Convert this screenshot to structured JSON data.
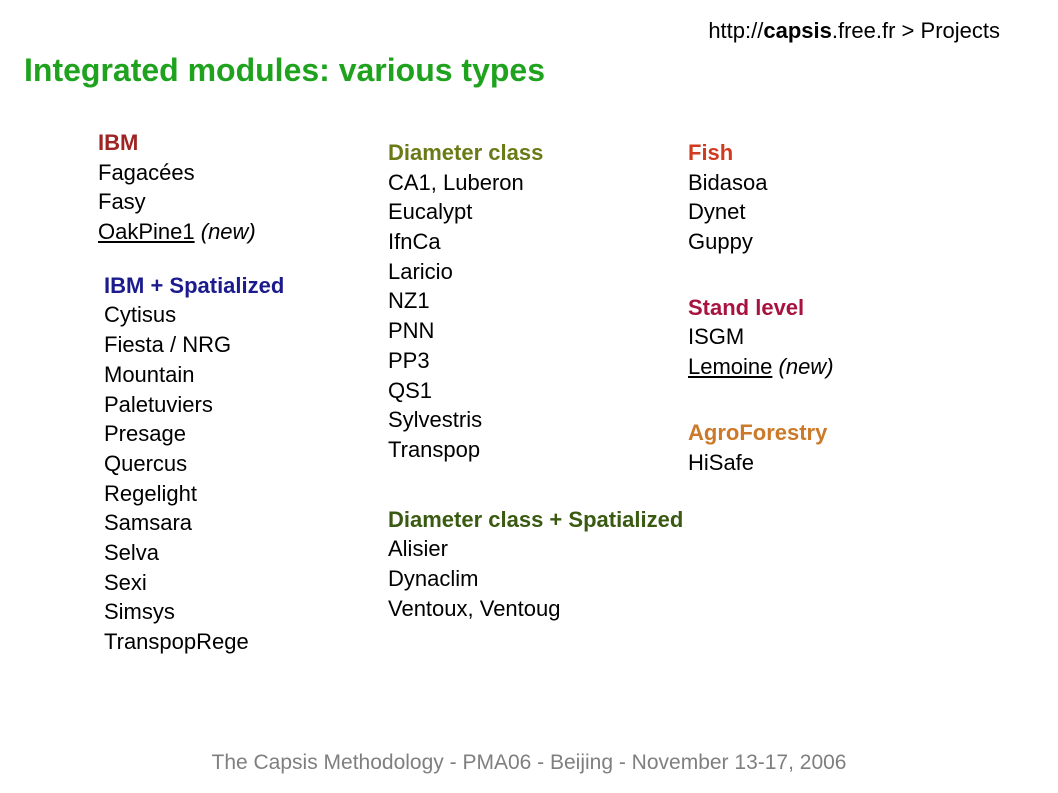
{
  "breadcrumb": {
    "prefix": "http://",
    "host_bold": "capsis",
    "host_rest": ".free.fr",
    "sep": " > ",
    "page": "Projects"
  },
  "title": {
    "text": "Integrated modules: various types",
    "color": "#1fa31f"
  },
  "footer": "The Capsis Methodology - PMA06 - Beijing - November 13-17, 2006",
  "groups": {
    "ibm": {
      "title": "IBM",
      "color": "#9e2323",
      "items": [
        {
          "text": "Fagacées"
        },
        {
          "text": "Fasy"
        },
        {
          "text": "OakPine1",
          "underline": true,
          "annot": " (new)"
        }
      ]
    },
    "ibm_spat": {
      "title": "IBM + Spatialized",
      "color": "#1b1b8e",
      "items": [
        {
          "text": "Cytisus"
        },
        {
          "text": "Fiesta / NRG"
        },
        {
          "text": "Mountain"
        },
        {
          "text": "Paletuviers"
        },
        {
          "text": "Presage"
        },
        {
          "text": "Quercus"
        },
        {
          "text": "Regelight"
        },
        {
          "text": "Samsara"
        },
        {
          "text": "Selva"
        },
        {
          "text": "Sexi"
        },
        {
          "text": "Simsys"
        },
        {
          "text": "TranspopRege"
        }
      ]
    },
    "dclass": {
      "title": "Diameter class",
      "color": "#6a7a17",
      "items": [
        {
          "text": "CA1, Luberon"
        },
        {
          "text": "Eucalypt"
        },
        {
          "text": "IfnCa"
        },
        {
          "text": "Laricio"
        },
        {
          "text": "NZ1"
        },
        {
          "text": "PNN"
        },
        {
          "text": "PP3"
        },
        {
          "text": "QS1"
        },
        {
          "text": "Sylvestris"
        },
        {
          "text": "Transpop"
        }
      ]
    },
    "dclass_spat": {
      "title": "Diameter class + Spatialized",
      "color": "#3a5a12",
      "items": [
        {
          "text": "Alisier"
        },
        {
          "text": "Dynaclim"
        },
        {
          "text": "Ventoux, Ventoug"
        }
      ]
    },
    "fish": {
      "title": "Fish",
      "color": "#d13a1f",
      "items": [
        {
          "text": "Bidasoa"
        },
        {
          "text": "Dynet"
        },
        {
          "text": "Guppy"
        }
      ]
    },
    "stand": {
      "title": "Stand level",
      "color": "#a8123e",
      "items": [
        {
          "text": "ISGM"
        },
        {
          "text": "Lemoine",
          "underline": true,
          "annot": " (new)"
        }
      ]
    },
    "agro": {
      "title": "AgroForestry",
      "color": "#cc7a29",
      "items": [
        {
          "text": "HiSafe"
        }
      ]
    }
  }
}
